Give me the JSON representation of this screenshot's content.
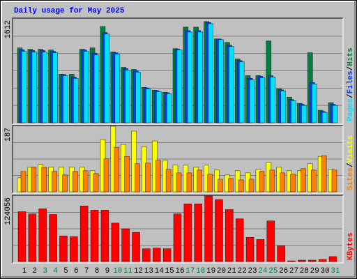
{
  "chart_data": [
    {
      "type": "bar",
      "title": "Daily usage for May 2025",
      "ylim": [
        0,
        1612
      ],
      "yticks": [
        1612
      ],
      "grid_divisions": 6,
      "legend_separator": "/",
      "series": [
        {
          "name": "Hits",
          "color": "#008040",
          "values": [
            1161,
            1140,
            1140,
            1129,
            753,
            753,
            1140,
            1161,
            1494,
            1097,
            860,
            828,
            548,
            505,
            473,
            1150,
            1484,
            1484,
            1570,
            1301,
            1247,
            989,
            731,
            731,
            1269,
            527,
            398,
            301,
            1086,
            194,
            312
          ]
        },
        {
          "name": "Files",
          "color": "#0040ff",
          "values": [
            1130,
            1120,
            1120,
            1108,
            750,
            710,
            1130,
            1080,
            1400,
            1085,
            840,
            805,
            540,
            497,
            465,
            1140,
            1430,
            1430,
            1555,
            1300,
            1205,
            965,
            690,
            720,
            730,
            510,
            360,
            285,
            625,
            175,
            285
          ]
        },
        {
          "name": "Pages",
          "color": "#00e0ff",
          "values": [
            1107,
            1097,
            1097,
            1086,
            731,
            688,
            1107,
            1054,
            1376,
            1064,
            817,
            785,
            527,
            484,
            452,
            1129,
            1408,
            1408,
            1537,
            1290,
            1183,
            946,
            667,
            699,
            710,
            495,
            344,
            269,
            602,
            161,
            269
          ]
        }
      ]
    },
    {
      "type": "bar",
      "ylim": [
        0,
        187
      ],
      "yticks": [
        187
      ],
      "grid_divisions": 4,
      "legend_separator": "/",
      "series": [
        {
          "name": "Visits",
          "color": "#ffff00",
          "values": [
            40,
            70,
            78,
            70,
            70,
            70,
            70,
            60,
            149,
            187,
            135,
            173,
            129,
            145,
            90,
            76,
            76,
            70,
            76,
            62,
            48,
            60,
            54,
            64,
            84,
            70,
            60,
            60,
            80,
            101,
            64
          ]
        },
        {
          "name": "Sites",
          "color": "#ff8000",
          "values": [
            58,
            70,
            70,
            58,
            48,
            58,
            60,
            52,
            94,
            127,
            101,
            80,
            82,
            90,
            64,
            54,
            54,
            62,
            50,
            36,
            38,
            34,
            36,
            58,
            62,
            54,
            50,
            66,
            62,
            103,
            62
          ]
        }
      ]
    },
    {
      "type": "bar",
      "ylim": [
        0,
        124056
      ],
      "yticks": [
        124056
      ],
      "grid_divisions": 4,
      "categories": [
        "1",
        "2",
        "3",
        "4",
        "5",
        "6",
        "7",
        "8",
        "9",
        "10",
        "11",
        "12",
        "13",
        "14",
        "15",
        "16",
        "17",
        "18",
        "19",
        "20",
        "21",
        "22",
        "23",
        "24",
        "25",
        "26",
        "27",
        "28",
        "29",
        "30",
        "31"
      ],
      "label_colors": [
        "#000000",
        "#000000",
        "#008040",
        "#008040",
        "#000000",
        "#000000",
        "#000000",
        "#000000",
        "#000000",
        "#008040",
        "#008040",
        "#000000",
        "#000000",
        "#000000",
        "#000000",
        "#000000",
        "#008040",
        "#008040",
        "#000000",
        "#000000",
        "#000000",
        "#000000",
        "#000000",
        "#008040",
        "#008040",
        "#000000",
        "#000000",
        "#000000",
        "#000000",
        "#000000",
        "#008040"
      ],
      "series": [
        {
          "name": "KBytes",
          "color": "#ff0000",
          "values": [
            94400,
            90300,
            99800,
            89000,
            48500,
            47200,
            105200,
            97100,
            97100,
            72800,
            62000,
            55300,
            24300,
            25600,
            24300,
            90300,
            109200,
            109200,
            124056,
            117300,
            98400,
            80900,
            45800,
            41800,
            76900,
            29700,
            1350,
            2700,
            2700,
            4050,
            9400
          ]
        }
      ]
    }
  ]
}
